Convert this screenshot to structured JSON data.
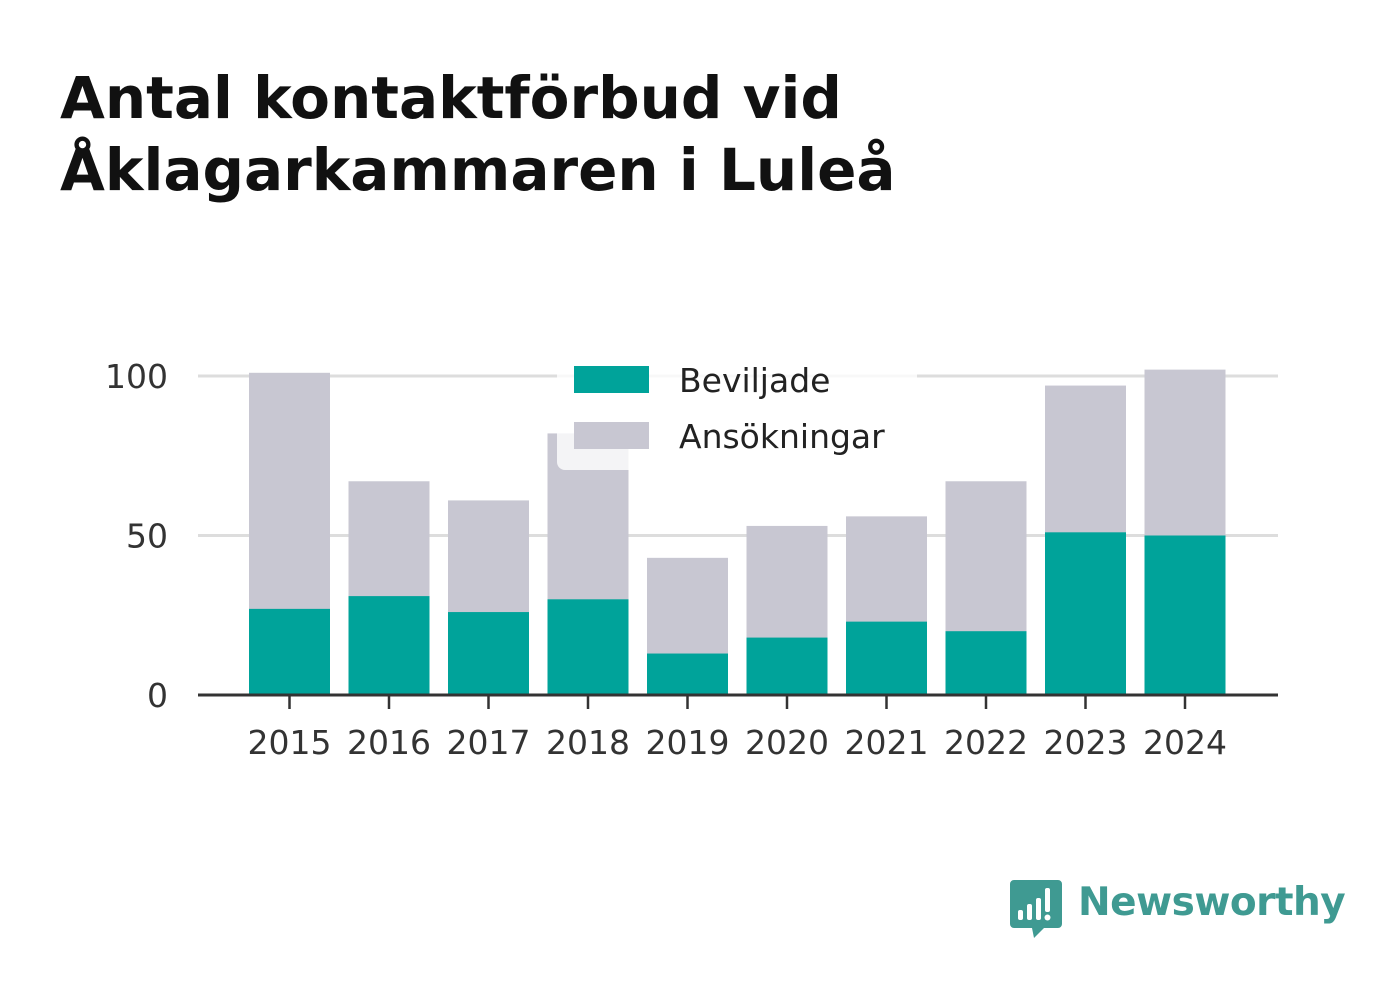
{
  "title": {
    "line1": "Antal kontaktförbud vid",
    "line2": "Åklagarkammaren i Luleå"
  },
  "chart_data": {
    "type": "bar",
    "categories": [
      "2015",
      "2016",
      "2017",
      "2018",
      "2019",
      "2020",
      "2021",
      "2022",
      "2023",
      "2024"
    ],
    "series": [
      {
        "name": "Ansökningar",
        "color": "#c8c7d2",
        "values": [
          101,
          67,
          61,
          82,
          43,
          53,
          56,
          67,
          97,
          102
        ]
      },
      {
        "name": "Beviljade",
        "color": "#00a39a",
        "values": [
          27,
          31,
          26,
          30,
          13,
          18,
          23,
          20,
          51,
          50
        ]
      }
    ],
    "yticks": [
      0,
      50,
      100
    ],
    "ylim": [
      0,
      105
    ],
    "grid": true,
    "legend": {
      "placement": "top-center",
      "items": [
        "Beviljade",
        "Ansökningar"
      ]
    },
    "xlabel": "",
    "ylabel": ""
  },
  "brand": {
    "name": "Newsworthy",
    "color": "#3f9a92",
    "icon": "bar-chart-speech-bubble-icon"
  }
}
